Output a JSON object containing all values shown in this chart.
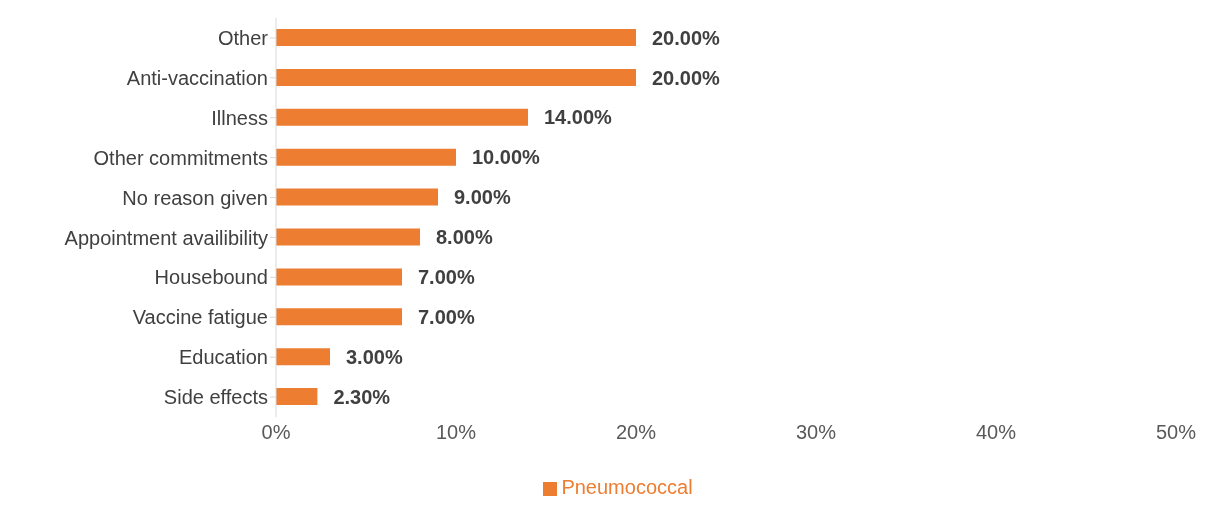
{
  "chart_data": {
    "type": "bar",
    "orientation": "horizontal",
    "categories": [
      "Other",
      "Anti-vaccination",
      "Illness",
      "Other commitments",
      "No reason given",
      "Appointment availibility",
      "Housebound",
      "Vaccine fatigue",
      "Education",
      "Side effects"
    ],
    "series": [
      {
        "name": "Pneumococcal",
        "color": "#ed7d31",
        "values": [
          20,
          20,
          14,
          10,
          9,
          8,
          7,
          7,
          3,
          2.3
        ],
        "value_labels": [
          "20.00%",
          "20.00%",
          "14.00%",
          "10.00%",
          "9.00%",
          "8.00%",
          "7.00%",
          "7.00%",
          "3.00%",
          "2.30%"
        ]
      }
    ],
    "xlim": [
      0,
      50
    ],
    "xticks": [
      {
        "value": 0,
        "label": "0%"
      },
      {
        "value": 10,
        "label": "10%"
      },
      {
        "value": 20,
        "label": "20%"
      },
      {
        "value": 30,
        "label": "30%"
      },
      {
        "value": 40,
        "label": "40%"
      },
      {
        "value": 50,
        "label": "50%"
      }
    ],
    "legend": "bottom"
  }
}
